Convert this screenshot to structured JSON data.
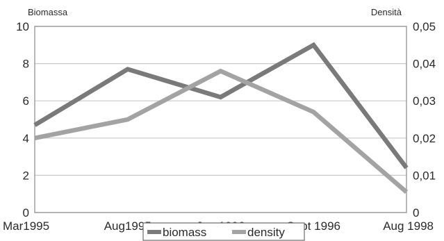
{
  "chart_data": {
    "type": "line",
    "title": "",
    "categories": [
      "Mar1995",
      "Aug1995",
      "Jan 1996",
      "Sept 1996",
      "Aug 1998"
    ],
    "left_axis": {
      "label": "Biomassa",
      "range": [
        0,
        10
      ],
      "ticks": [
        "0",
        "2",
        "4",
        "6",
        "8",
        "10"
      ]
    },
    "right_axis": {
      "label": "Densità",
      "range": [
        0,
        0.05
      ],
      "ticks": [
        "0",
        "0,01",
        "0,02",
        "0,03",
        "0,04",
        "0,05"
      ]
    },
    "series": [
      {
        "name": "biomass",
        "axis": "left",
        "values": [
          4.7,
          7.7,
          6.2,
          9.0,
          2.4
        ],
        "color": "#7a7a7a"
      },
      {
        "name": "density",
        "axis": "right",
        "values": [
          0.02,
          0.025,
          0.038,
          0.027,
          0.0055
        ],
        "color": "#a3a3a3"
      }
    ],
    "grid": true,
    "legend": "bottom-center"
  }
}
